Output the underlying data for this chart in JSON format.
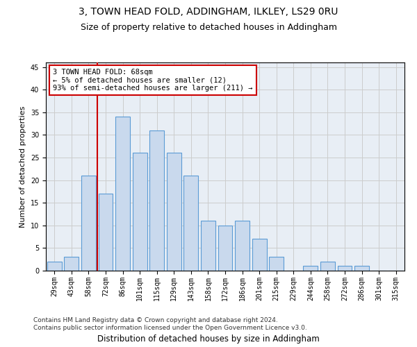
{
  "title": "3, TOWN HEAD FOLD, ADDINGHAM, ILKLEY, LS29 0RU",
  "subtitle": "Size of property relative to detached houses in Addingham",
  "xlabel": "Distribution of detached houses by size in Addingham",
  "ylabel": "Number of detached properties",
  "categories": [
    "29sqm",
    "43sqm",
    "58sqm",
    "72sqm",
    "86sqm",
    "101sqm",
    "115sqm",
    "129sqm",
    "143sqm",
    "158sqm",
    "172sqm",
    "186sqm",
    "201sqm",
    "215sqm",
    "229sqm",
    "244sqm",
    "258sqm",
    "272sqm",
    "286sqm",
    "301sqm",
    "315sqm"
  ],
  "values": [
    2,
    3,
    21,
    17,
    34,
    26,
    31,
    26,
    21,
    11,
    10,
    11,
    7,
    3,
    0,
    1,
    2,
    1,
    1,
    0,
    0
  ],
  "bar_color": "#c9d9ed",
  "bar_edge_color": "#5b9bd5",
  "vline_position": 2.5,
  "vline_color": "#cc0000",
  "annotation_text": "3 TOWN HEAD FOLD: 68sqm\n← 5% of detached houses are smaller (12)\n93% of semi-detached houses are larger (211) →",
  "annotation_box_color": "#ffffff",
  "annotation_box_edge": "#cc0000",
  "ylim": [
    0,
    46
  ],
  "yticks": [
    0,
    5,
    10,
    15,
    20,
    25,
    30,
    35,
    40,
    45
  ],
  "grid_color": "#cccccc",
  "bg_color": "#e8eef5",
  "footer": "Contains HM Land Registry data © Crown copyright and database right 2024.\nContains public sector information licensed under the Open Government Licence v3.0.",
  "title_fontsize": 10,
  "subtitle_fontsize": 9,
  "xlabel_fontsize": 8.5,
  "ylabel_fontsize": 8,
  "tick_fontsize": 7,
  "annotation_fontsize": 7.5,
  "footer_fontsize": 6.5
}
